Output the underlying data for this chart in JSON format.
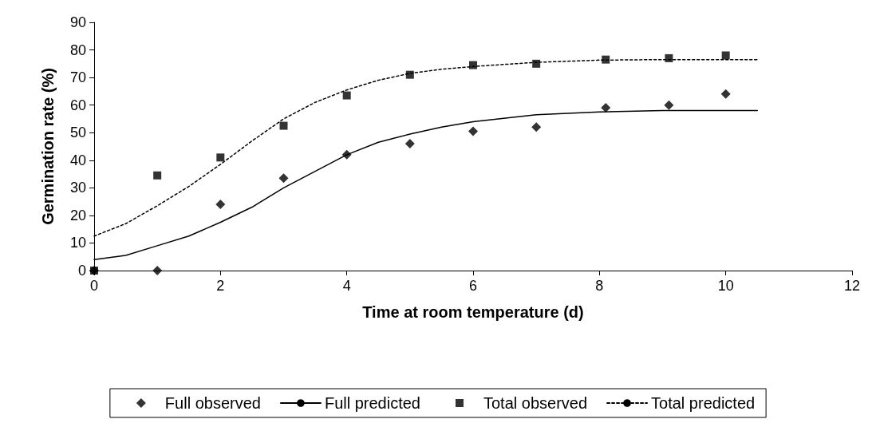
{
  "chart_data": {
    "type": "scatter",
    "xlabel": "Time at room temperature (d)",
    "ylabel": "Germination rate (%)",
    "xlim": [
      0,
      12
    ],
    "xticks": [
      0,
      2,
      4,
      6,
      8,
      10,
      12
    ],
    "ylim": [
      0,
      90
    ],
    "yticks": [
      0,
      10,
      20,
      30,
      40,
      50,
      60,
      70,
      80,
      90
    ],
    "grid": false,
    "legend": "bottom",
    "series": [
      {
        "name": "Full observed",
        "marker": "diamond",
        "color": "#000000",
        "x": [
          0,
          1,
          2,
          3,
          4,
          5,
          6,
          7,
          8.1,
          9.1,
          10
        ],
        "values": [
          0,
          0,
          24,
          33.5,
          42,
          46,
          50.5,
          52,
          59,
          60,
          64
        ]
      },
      {
        "name": "Full predicted",
        "type": "line",
        "marker": "none",
        "line_style": "solid",
        "color": "#000000",
        "x": [
          0,
          0.5,
          1,
          1.5,
          2,
          2.5,
          3,
          3.5,
          4,
          4.5,
          5,
          5.5,
          6,
          7,
          8,
          9,
          10.5
        ],
        "values": [
          4,
          5.5,
          9,
          12.5,
          17.5,
          23,
          30,
          36,
          42,
          46.5,
          49.5,
          52,
          54,
          56.5,
          57.5,
          58,
          58
        ]
      },
      {
        "name": "Total observed",
        "marker": "square",
        "color": "#000000",
        "x": [
          0,
          1,
          2,
          3,
          4,
          5,
          6,
          7,
          8.1,
          9.1,
          10
        ],
        "values": [
          0,
          34.5,
          41,
          52.5,
          63.5,
          71,
          74.5,
          75,
          76.5,
          77,
          78
        ]
      },
      {
        "name": "Total predicted",
        "type": "line",
        "marker": "none",
        "line_style": "dotted",
        "color": "#000000",
        "x": [
          0,
          0.5,
          1,
          1.5,
          2,
          2.5,
          3,
          3.5,
          4,
          4.5,
          5,
          5.5,
          6,
          7,
          8,
          9,
          10.5
        ],
        "values": [
          12.5,
          17,
          23.5,
          30.5,
          38.5,
          47,
          55,
          61,
          65.5,
          69,
          71.5,
          73,
          74,
          75.5,
          76.3,
          76.5,
          76.5
        ]
      }
    ]
  }
}
